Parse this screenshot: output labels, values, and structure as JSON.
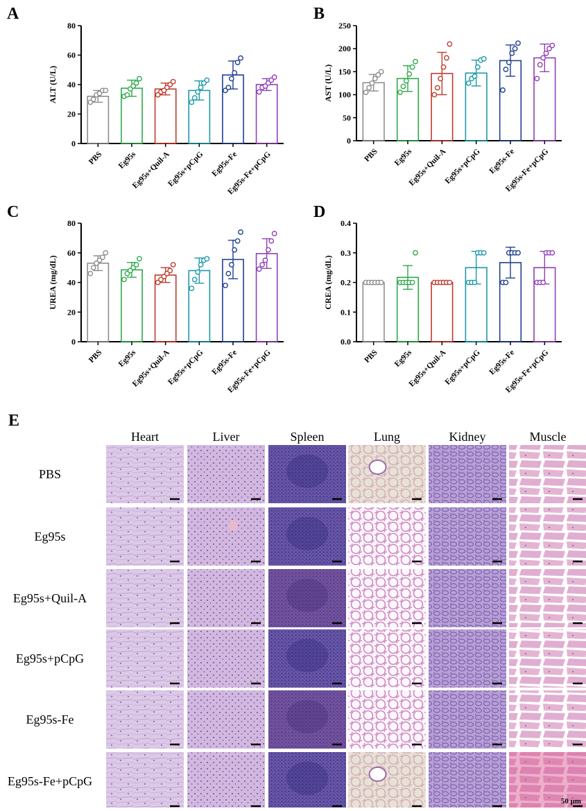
{
  "colors": {
    "PBS": "#8c8c8c",
    "Eg95s": "#2ea84a",
    "Eg95s+Quil-A": "#c0392b",
    "Eg95s+pCpG": "#1b98a8",
    "Eg95s-Fe": "#1f3f8f",
    "Eg95s-Fe+pCpG": "#8e3fb5"
  },
  "chart_data": [
    {
      "panel": "A",
      "type": "bar",
      "ylabel": "ALT (U/L)",
      "ylim": [
        0,
        80
      ],
      "yticks": [
        0,
        20,
        40,
        60,
        80
      ],
      "categories": [
        "PBS",
        "Eg95s",
        "Eg95s+Quil-A",
        "Eg95s+pCpG",
        "Eg95s-Fe",
        "Eg95s-Fe+pCpG"
      ],
      "values": [
        32,
        37.5,
        37,
        36,
        46.5,
        40
      ],
      "errors": [
        4,
        5.5,
        4,
        6.5,
        9.5,
        4
      ],
      "points": [
        [
          28,
          30,
          33,
          34,
          36,
          36
        ],
        [
          32,
          33,
          37,
          39,
          41,
          44
        ],
        [
          33,
          35,
          36,
          38,
          40,
          42
        ],
        [
          28,
          31,
          35,
          38,
          41,
          43
        ],
        [
          36,
          38,
          44,
          48,
          55,
          58
        ],
        [
          35,
          38,
          39,
          41,
          43,
          45
        ]
      ]
    },
    {
      "panel": "B",
      "type": "bar",
      "ylabel": "AST (U/L)",
      "ylim": [
        0,
        250
      ],
      "yticks": [
        0,
        50,
        100,
        150,
        200,
        250
      ],
      "categories": [
        "PBS",
        "Eg95s",
        "Eg95s+Quil-A",
        "Eg95s+pCpG",
        "Eg95s-Fe",
        "Eg95s-Fe+pCpG"
      ],
      "values": [
        126,
        135,
        146,
        147,
        174,
        180
      ],
      "errors": [
        18,
        28,
        46,
        28,
        34,
        30
      ],
      "points": [
        [
          105,
          115,
          125,
          135,
          143,
          150
        ],
        [
          105,
          118,
          130,
          145,
          160,
          172
        ],
        [
          100,
          115,
          135,
          160,
          180,
          210
        ],
        [
          125,
          135,
          140,
          160,
          175,
          178
        ],
        [
          110,
          155,
          170,
          190,
          200,
          212
        ],
        [
          135,
          165,
          180,
          190,
          200,
          207
        ]
      ]
    },
    {
      "panel": "C",
      "type": "bar",
      "ylabel": "UREA (mg/dL)",
      "ylim": [
        0,
        80
      ],
      "yticks": [
        0,
        20,
        40,
        60,
        80
      ],
      "categories": [
        "PBS",
        "Eg95s",
        "Eg95s+Quil-A",
        "Eg95s+pCpG",
        "Eg95s-Fe",
        "Eg95s-Fe+pCpG"
      ],
      "values": [
        53,
        48.5,
        45,
        48,
        55.5,
        59.5
      ],
      "errors": [
        5,
        5,
        5,
        8.5,
        13,
        10
      ],
      "points": [
        [
          46,
          50,
          53,
          55,
          57,
          60
        ],
        [
          42,
          46,
          48,
          50,
          52,
          56
        ],
        [
          40,
          42,
          44,
          46,
          48,
          52
        ],
        [
          36,
          42,
          47,
          52,
          55,
          56
        ],
        [
          38,
          46,
          52,
          62,
          68,
          74
        ],
        [
          49,
          52,
          55,
          62,
          68,
          73
        ]
      ]
    },
    {
      "panel": "D",
      "type": "bar",
      "ylabel": "CREA (mg/dL)",
      "ylim": [
        0,
        0.4
      ],
      "yticks": [
        0.0,
        0.1,
        0.2,
        0.3,
        0.4
      ],
      "categories": [
        "PBS",
        "Eg95s",
        "Eg95s+Quil-A",
        "Eg95s+pCpG",
        "Eg95s-Fe",
        "Eg95s-Fe+pCpG"
      ],
      "values": [
        0.2,
        0.217,
        0.2,
        0.25,
        0.267,
        0.25
      ],
      "errors": [
        0,
        0.04,
        0,
        0.055,
        0.052,
        0.055
      ],
      "points": [
        [
          0.2,
          0.2,
          0.2,
          0.2,
          0.2,
          0.2
        ],
        [
          0.2,
          0.2,
          0.2,
          0.2,
          0.2,
          0.3
        ],
        [
          0.2,
          0.2,
          0.2,
          0.2,
          0.2,
          0.2
        ],
        [
          0.2,
          0.2,
          0.2,
          0.3,
          0.3,
          0.3
        ],
        [
          0.2,
          0.2,
          0.3,
          0.3,
          0.3,
          0.3
        ],
        [
          0.2,
          0.2,
          0.2,
          0.3,
          0.3,
          0.3
        ]
      ]
    }
  ],
  "histology": {
    "panel": "E",
    "columns": [
      "Heart",
      "Liver",
      "Spleen",
      "Lung",
      "Kidney",
      "Muscle"
    ],
    "rows": [
      "PBS",
      "Eg95s",
      "Eg95s+Quil-A",
      "Eg95s+pCpG",
      "Eg95s-Fe",
      "Eg95s-Fe+pCpG"
    ],
    "scale_bar": "50 μm"
  }
}
